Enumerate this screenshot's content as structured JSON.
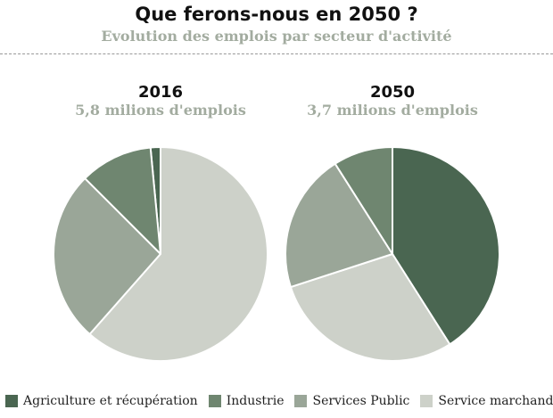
{
  "title": "Que ferons-nous en 2050 ?",
  "subtitle": "Evolution des emplois par secteur d'activité",
  "chart_data": [
    {
      "type": "pie",
      "title": "2016",
      "subtitle": "5,8 milions d'emplois",
      "categories": [
        "Agriculture et récupération",
        "Industrie",
        "Services Public",
        "Service marchands"
      ],
      "values": [
        1.5,
        11,
        26,
        61.5
      ],
      "unit": "%"
    },
    {
      "type": "pie",
      "title": "2050",
      "subtitle": "3,7 milions d'emplois",
      "categories": [
        "Agriculture et récupération",
        "Industrie",
        "Services Public",
        "Service marchands"
      ],
      "values": [
        41,
        9,
        21,
        29
      ],
      "unit": "%"
    }
  ],
  "colors": {
    "Agriculture et récupération": "#4a6651",
    "Industrie": "#6f8670",
    "Services Public": "#9aa698",
    "Service marchands": "#cdd1c9"
  },
  "legend": {
    "placement": "bottom",
    "items": [
      "Agriculture et récupération",
      "Industrie",
      "Services Public",
      "Service marchands"
    ]
  }
}
